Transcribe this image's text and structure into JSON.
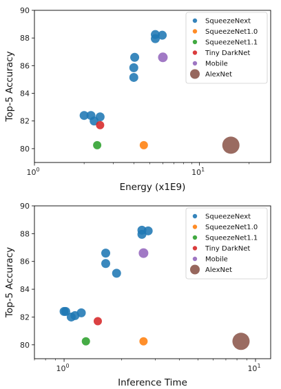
{
  "chart_data": [
    {
      "type": "scatter",
      "xlabel": "Energy (x1E9)",
      "ylabel": "Top-5 Accuracy",
      "xscale": "log",
      "xlim": [
        1,
        27
      ],
      "ylim": [
        79,
        90
      ],
      "xticks": [
        {
          "value": 1,
          "base": "10",
          "exp": "0"
        },
        {
          "value": 10,
          "base": "10",
          "exp": "1"
        }
      ],
      "yticks": [
        80,
        82,
        84,
        86,
        88,
        90
      ],
      "grid": false,
      "legend": "top-right",
      "series": [
        {
          "name": "SqueezeNext",
          "color": "#1f77b4",
          "size": 10,
          "points": [
            [
              2.0,
              82.4
            ],
            [
              2.2,
              82.4
            ],
            [
              2.3,
              82.0
            ],
            [
              2.5,
              82.3
            ],
            [
              4.05,
              86.6
            ],
            [
              4.0,
              85.85
            ],
            [
              4.0,
              85.15
            ],
            [
              5.4,
              88.25
            ],
            [
              5.4,
              87.95
            ],
            [
              5.95,
              88.2
            ]
          ]
        },
        {
          "name": "SqueezeNet1.0",
          "color": "#ff7f0e",
          "size": 9,
          "points": [
            [
              4.6,
              80.25
            ]
          ]
        },
        {
          "name": "SqueezeNet1.1",
          "color": "#2ca02c",
          "size": 9,
          "points": [
            [
              2.4,
              80.25
            ]
          ]
        },
        {
          "name": "Tiny DarkNet",
          "color": "#d62728",
          "size": 9,
          "points": [
            [
              2.5,
              81.7
            ]
          ]
        },
        {
          "name": "Mobile",
          "color": "#9467bd",
          "size": 11,
          "points": [
            [
              6.0,
              86.6
            ]
          ]
        },
        {
          "name": "AlexNet",
          "color": "#8c564b",
          "size": 22,
          "points": [
            [
              15.5,
              80.25
            ]
          ]
        }
      ]
    },
    {
      "type": "scatter",
      "xlabel": "Inference Time",
      "ylabel": "Top-5 Accuracy",
      "xscale": "log",
      "xlim": [
        0.7,
        12
      ],
      "ylim": [
        79,
        90
      ],
      "xticks": [
        {
          "value": 1,
          "base": "10",
          "exp": "0"
        },
        {
          "value": 10,
          "base": "10",
          "exp": "1"
        }
      ],
      "yticks": [
        80,
        82,
        84,
        86,
        88,
        90
      ],
      "grid": false,
      "legend": "top-right",
      "series": [
        {
          "name": "SqueezeNext",
          "color": "#1f77b4",
          "size": 10,
          "points": [
            [
              1.0,
              82.4
            ],
            [
              1.02,
              82.4
            ],
            [
              1.09,
              82.0
            ],
            [
              1.14,
              82.1
            ],
            [
              1.23,
              82.3
            ],
            [
              1.65,
              86.6
            ],
            [
              1.65,
              85.85
            ],
            [
              1.88,
              85.15
            ],
            [
              2.55,
              88.25
            ],
            [
              2.55,
              87.95
            ],
            [
              2.75,
              88.2
            ]
          ]
        },
        {
          "name": "SqueezeNet1.0",
          "color": "#ff7f0e",
          "size": 9,
          "points": [
            [
              2.6,
              80.25
            ]
          ]
        },
        {
          "name": "SqueezeNet1.1",
          "color": "#2ca02c",
          "size": 9,
          "points": [
            [
              1.3,
              80.25
            ]
          ]
        },
        {
          "name": "Tiny DarkNet",
          "color": "#d62728",
          "size": 9,
          "points": [
            [
              1.5,
              81.7
            ]
          ]
        },
        {
          "name": "Mobile",
          "color": "#9467bd",
          "size": 11,
          "points": [
            [
              2.6,
              86.6
            ]
          ]
        },
        {
          "name": "AlexNet",
          "color": "#8c564b",
          "size": 22,
          "points": [
            [
              8.4,
              80.25
            ]
          ]
        }
      ]
    }
  ]
}
